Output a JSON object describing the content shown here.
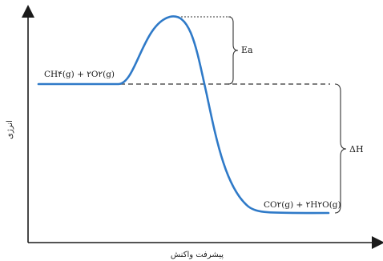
{
  "diagram": {
    "y_axis_label": "انرژی",
    "x_axis_label": "پیشرفت واکنش",
    "reactants_label": "CH۴(g) + ۲O۲(g)",
    "products_label": "CO۲(g) + ۲H۲O(g)",
    "activation_energy_label": "Ea",
    "enthalpy_change_label": "ΔH",
    "curve_color": "#2f7ac8",
    "axis_color": "#1a1a1a",
    "guide_color": "#555555"
  }
}
